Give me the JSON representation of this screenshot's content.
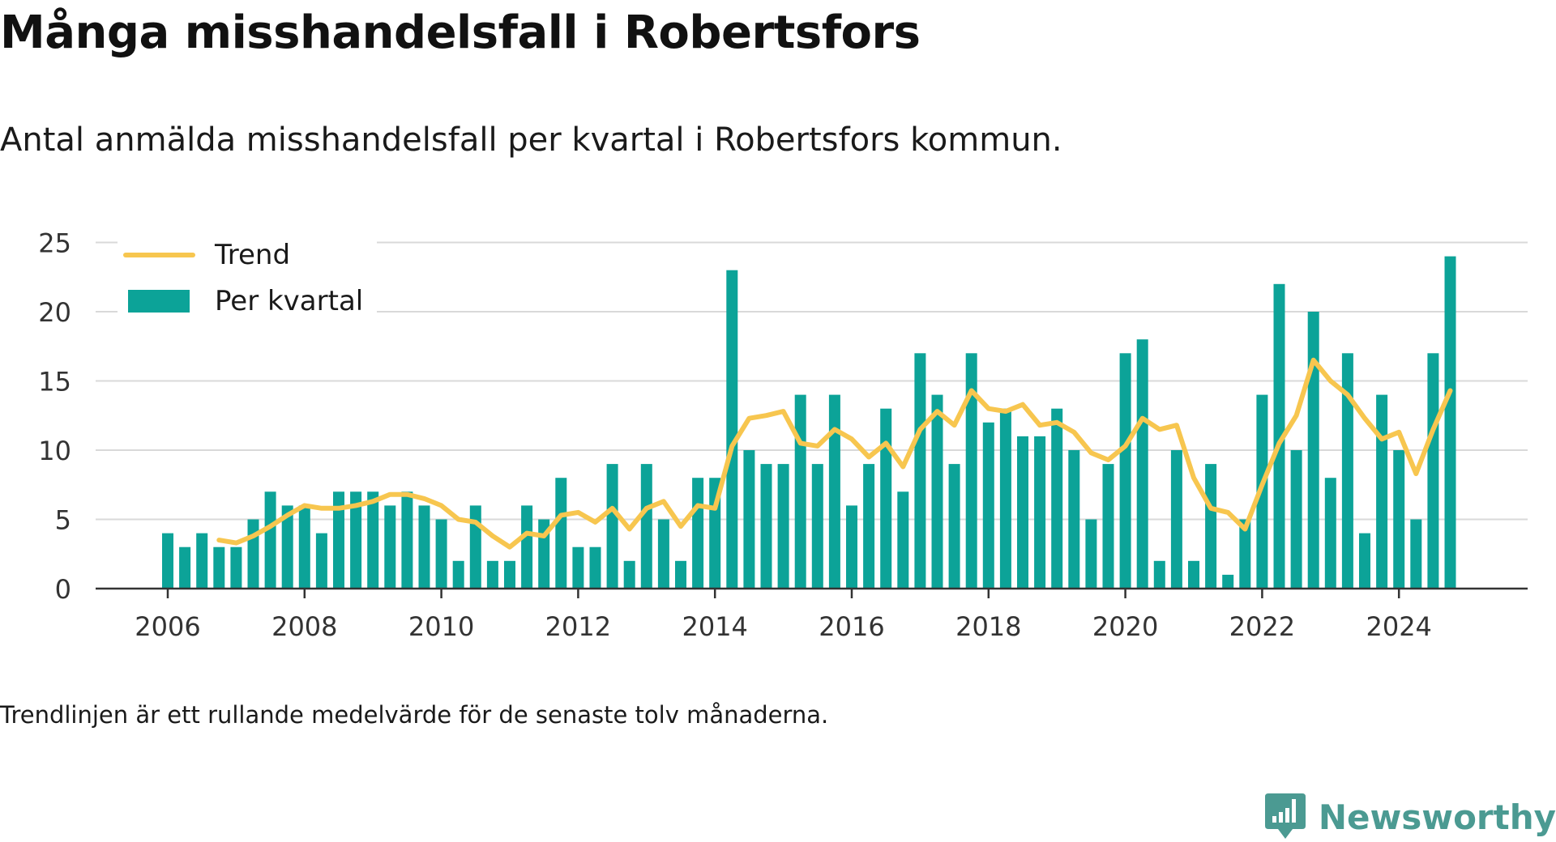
{
  "title": "Många misshandelsfall i Robertsfors",
  "subtitle": "Antal anmälda misshandelsfall per kvartal i Robertsfors kommun.",
  "note": "Trendlinjen är ett rullande medelvärde för de senaste tolv månaderna.",
  "brand": {
    "name": "Newsworthy",
    "color": "#4b9a92"
  },
  "chart_data": {
    "type": "bar",
    "x_start_year": 2006,
    "quarters_per_year": 4,
    "x_ticks": [
      "2006",
      "2008",
      "2010",
      "2012",
      "2014",
      "2016",
      "2018",
      "2020",
      "2022",
      "2024"
    ],
    "y_ticks": [
      "0",
      "5",
      "10",
      "15",
      "20",
      "25"
    ],
    "ylim": [
      0,
      25
    ],
    "grid": true,
    "legend_position": "top-left",
    "series": [
      {
        "name": "Per kvartal",
        "kind": "bar",
        "color": "#0ca398",
        "values": [
          4,
          3,
          4,
          3,
          3,
          5,
          7,
          6,
          6,
          4,
          7,
          7,
          7,
          6,
          7,
          6,
          5,
          2,
          6,
          2,
          2,
          6,
          5,
          8,
          3,
          3,
          9,
          2,
          9,
          5,
          2,
          8,
          8,
          23,
          10,
          9,
          9,
          14,
          9,
          14,
          6,
          9,
          13,
          7,
          17,
          14,
          9,
          17,
          12,
          13,
          11,
          11,
          13,
          10,
          5,
          9,
          17,
          18,
          2,
          10,
          2,
          9,
          1,
          5,
          14,
          22,
          10,
          20,
          8,
          17,
          4,
          14,
          10,
          5,
          17,
          24
        ]
      },
      {
        "name": "Trend",
        "kind": "line",
        "color": "#f7c64f",
        "start_index": 3,
        "values": [
          3.5,
          3.3,
          3.8,
          4.5,
          5.3,
          6.0,
          5.8,
          5.8,
          6.0,
          6.3,
          6.8,
          6.8,
          6.5,
          6.0,
          5.0,
          4.8,
          3.8,
          3.0,
          4.0,
          3.8,
          5.3,
          5.5,
          4.8,
          5.8,
          4.3,
          5.8,
          6.3,
          4.5,
          6.0,
          5.8,
          10.3,
          12.3,
          12.5,
          12.8,
          10.5,
          10.3,
          11.5,
          10.8,
          9.5,
          10.5,
          8.8,
          11.5,
          12.8,
          11.8,
          14.3,
          13.0,
          12.8,
          13.3,
          11.8,
          12.0,
          11.3,
          9.8,
          9.3,
          10.3,
          12.3,
          11.5,
          11.8,
          8.0,
          5.8,
          5.5,
          4.3,
          7.5,
          10.5,
          12.5,
          16.5,
          15.0,
          14.0,
          12.3,
          10.8,
          11.3,
          8.3,
          11.5,
          14.3
        ]
      }
    ]
  }
}
